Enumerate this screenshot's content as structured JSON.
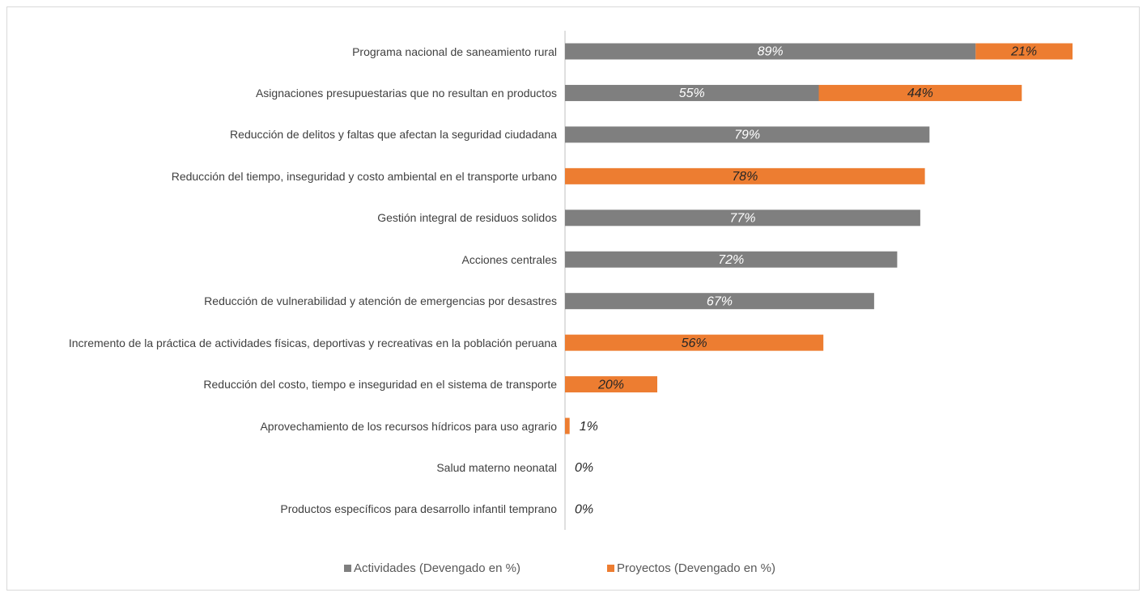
{
  "chart_data": {
    "type": "stacked-bar-horizontal",
    "categories": [
      "Programa nacional de saneamiento rural",
      "Asignaciones presupuestarias que no resultan en productos",
      "Reducción de delitos y faltas que afectan la seguridad ciudadana",
      "Reducción del tiempo, inseguridad y costo ambiental en el transporte urbano",
      "Gestión integral de residuos solidos",
      "Acciones centrales",
      "Reducción de vulnerabilidad y atención de emergencias por desastres",
      "Incremento de la práctica de actividades físicas, deportivas y recreativas en la población peruana",
      "Reducción del costo, tiempo e inseguridad en el sistema de transporte",
      "Aprovechamiento de los recursos hídricos para uso agrario",
      "Salud materno neonatal",
      "Productos específicos para desarrollo infantil temprano"
    ],
    "series": [
      {
        "name": "Actividades (Devengado en %)",
        "color": "#7f7f7f",
        "values": [
          89,
          55,
          79,
          null,
          77,
          72,
          67,
          null,
          null,
          null,
          0,
          0
        ],
        "value_labels": [
          "89%",
          "55%",
          "79%",
          null,
          "77%",
          "72%",
          "67%",
          null,
          null,
          null,
          "0%",
          "0%"
        ]
      },
      {
        "name": "Proyectos (Devengado en %)",
        "color": "#ed7d31",
        "values": [
          21,
          44,
          null,
          78,
          null,
          null,
          null,
          56,
          20,
          1,
          null,
          null
        ],
        "value_labels": [
          "21%",
          "44%",
          null,
          "78%",
          null,
          null,
          null,
          "56%",
          "20%",
          "1%",
          null,
          null
        ]
      }
    ],
    "legend": "bottom"
  }
}
